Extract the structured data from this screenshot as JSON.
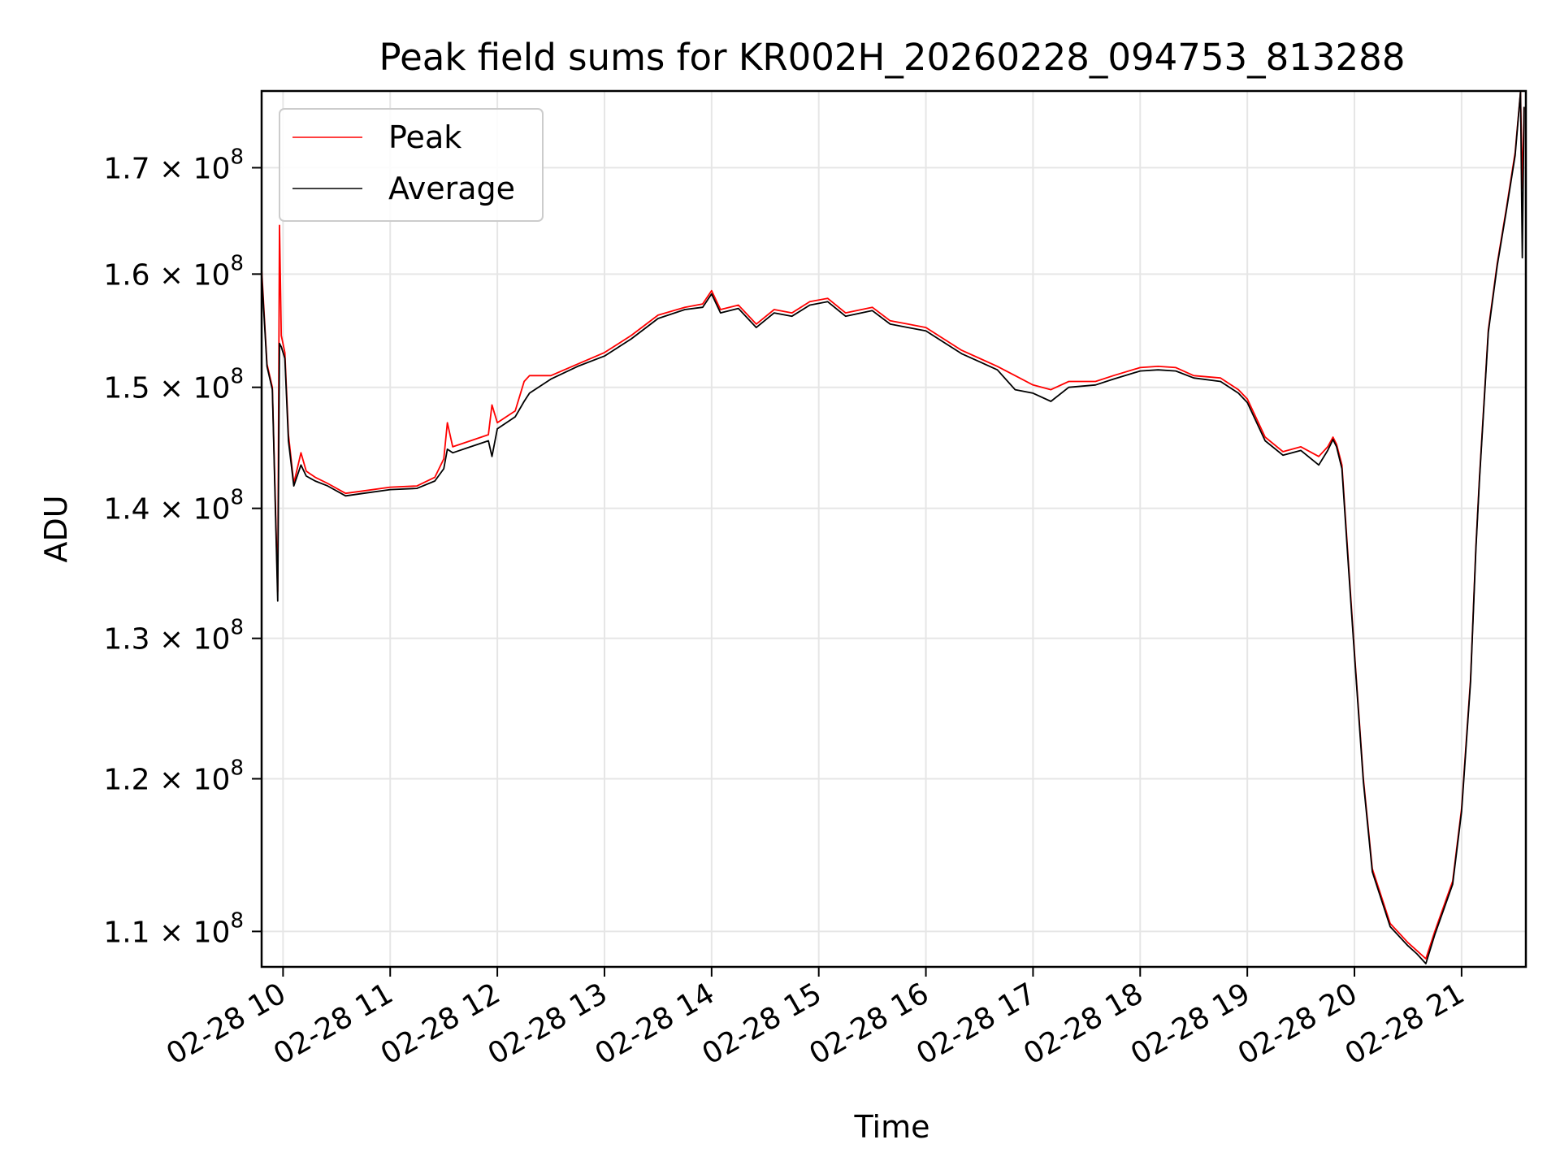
{
  "chart_data": {
    "type": "line",
    "title": "Peak field sums for KR002H_20260228_094753_813288",
    "xlabel": "Time",
    "ylabel": "ADU",
    "yscale": "log",
    "grid": true,
    "legend_position": "top-left",
    "xlim": [
      "02-28 09:48",
      "02-28 21:36"
    ],
    "ylim": [
      107800000,
      177600000
    ],
    "x_ticks": [
      "02-28 10",
      "02-28 11",
      "02-28 12",
      "02-28 13",
      "02-28 14",
      "02-28 15",
      "02-28 16",
      "02-28 17",
      "02-28 18",
      "02-28 19",
      "02-28 20",
      "02-28 21"
    ],
    "y_ticks": [
      {
        "value": 110000000,
        "mantissa": "1.1",
        "base": "10",
        "exponent": "8"
      },
      {
        "value": 120000000,
        "mantissa": "1.2",
        "base": "10",
        "exponent": "8"
      },
      {
        "value": 130000000,
        "mantissa": "1.3",
        "base": "10",
        "exponent": "8"
      },
      {
        "value": 140000000,
        "mantissa": "1.4",
        "base": "10",
        "exponent": "8"
      },
      {
        "value": 150000000,
        "mantissa": "1.5",
        "base": "10",
        "exponent": "8"
      },
      {
        "value": 160000000,
        "mantissa": "1.6",
        "base": "10",
        "exponent": "8"
      },
      {
        "value": 170000000,
        "mantissa": "1.7",
        "base": "10",
        "exponent": "8"
      }
    ],
    "series": [
      {
        "name": "Peak",
        "color": "#ff0000",
        "points": [
          [
            "02-28 09:48",
            160500000
          ],
          [
            "02-28 09:51",
            152000000
          ],
          [
            "02-28 09:54",
            150000000
          ],
          [
            "02-28 09:57",
            133500000
          ],
          [
            "02-28 09:58",
            164500000
          ],
          [
            "02-28 09:59",
            154500000
          ],
          [
            "02-28 10:01",
            153000000
          ],
          [
            "02-28 10:03",
            146000000
          ],
          [
            "02-28 10:06",
            142000000
          ],
          [
            "02-28 10:10",
            144500000
          ],
          [
            "02-28 10:13",
            143000000
          ],
          [
            "02-28 10:18",
            142500000
          ],
          [
            "02-28 10:25",
            142000000
          ],
          [
            "02-28 10:35",
            141200000
          ],
          [
            "02-28 10:45",
            141400000
          ],
          [
            "02-28 11:00",
            141700000
          ],
          [
            "02-28 11:15",
            141800000
          ],
          [
            "02-28 11:25",
            142500000
          ],
          [
            "02-28 11:30",
            144000000
          ],
          [
            "02-28 11:32",
            147000000
          ],
          [
            "02-28 11:35",
            145000000
          ],
          [
            "02-28 11:45",
            145500000
          ],
          [
            "02-28 11:55",
            146000000
          ],
          [
            "02-28 11:57",
            148500000
          ],
          [
            "02-28 12:00",
            147000000
          ],
          [
            "02-28 12:10",
            148000000
          ],
          [
            "02-28 12:15",
            150500000
          ],
          [
            "02-28 12:18",
            151000000
          ],
          [
            "02-28 12:30",
            151000000
          ],
          [
            "02-28 12:45",
            152000000
          ],
          [
            "02-28 13:00",
            153000000
          ],
          [
            "02-28 13:15",
            154500000
          ],
          [
            "02-28 13:30",
            156300000
          ],
          [
            "02-28 13:45",
            157000000
          ],
          [
            "02-28 13:55",
            157300000
          ],
          [
            "02-28 14:00",
            158500000
          ],
          [
            "02-28 14:05",
            156800000
          ],
          [
            "02-28 14:15",
            157200000
          ],
          [
            "02-28 14:25",
            155500000
          ],
          [
            "02-28 14:35",
            156800000
          ],
          [
            "02-28 14:45",
            156500000
          ],
          [
            "02-28 14:55",
            157500000
          ],
          [
            "02-28 15:05",
            157800000
          ],
          [
            "02-28 15:15",
            156500000
          ],
          [
            "02-28 15:30",
            157000000
          ],
          [
            "02-28 15:40",
            155800000
          ],
          [
            "02-28 15:50",
            155500000
          ],
          [
            "02-28 16:00",
            155200000
          ],
          [
            "02-28 16:10",
            154200000
          ],
          [
            "02-28 16:20",
            153200000
          ],
          [
            "02-28 16:30",
            152500000
          ],
          [
            "02-28 16:40",
            151800000
          ],
          [
            "02-28 16:50",
            151000000
          ],
          [
            "02-28 17:00",
            150200000
          ],
          [
            "02-28 17:10",
            149800000
          ],
          [
            "02-28 17:20",
            150500000
          ],
          [
            "02-28 17:35",
            150500000
          ],
          [
            "02-28 17:45",
            151000000
          ],
          [
            "02-28 18:00",
            151700000
          ],
          [
            "02-28 18:10",
            151800000
          ],
          [
            "02-28 18:20",
            151700000
          ],
          [
            "02-28 18:30",
            151000000
          ],
          [
            "02-28 18:45",
            150800000
          ],
          [
            "02-28 18:55",
            149800000
          ],
          [
            "02-28 19:00",
            149000000
          ],
          [
            "02-28 19:10",
            145800000
          ],
          [
            "02-28 19:20",
            144600000
          ],
          [
            "02-28 19:30",
            145000000
          ],
          [
            "02-28 19:40",
            144200000
          ],
          [
            "02-28 19:45",
            145000000
          ],
          [
            "02-28 19:48",
            145800000
          ],
          [
            "02-28 19:50",
            145200000
          ],
          [
            "02-28 19:53",
            143500000
          ],
          [
            "02-28 19:57",
            135000000
          ],
          [
            "02-28 20:00",
            129000000
          ],
          [
            "02-28 20:05",
            120000000
          ],
          [
            "02-28 20:10",
            114000000
          ],
          [
            "02-28 20:20",
            110500000
          ],
          [
            "02-28 20:30",
            109300000
          ],
          [
            "02-28 20:35",
            108800000
          ],
          [
            "02-28 20:40",
            108300000
          ],
          [
            "02-28 20:45",
            110000000
          ],
          [
            "02-28 20:55",
            113200000
          ],
          [
            "02-28 21:00",
            118000000
          ],
          [
            "02-28 21:05",
            127000000
          ],
          [
            "02-28 21:08",
            137000000
          ],
          [
            "02-28 21:10",
            142500000
          ],
          [
            "02-28 21:15",
            155000000
          ],
          [
            "02-28 21:20",
            161000000
          ],
          [
            "02-28 21:25",
            166000000
          ],
          [
            "02-28 21:30",
            171500000
          ],
          [
            "02-28 21:33",
            177500000
          ],
          [
            "02-28 21:34",
            168000000
          ],
          [
            "02-28 21:35",
            176000000
          ]
        ]
      },
      {
        "name": "Average",
        "color": "#000000",
        "points": [
          [
            "02-28 09:48",
            160000000
          ],
          [
            "02-28 09:51",
            151800000
          ],
          [
            "02-28 09:54",
            149800000
          ],
          [
            "02-28 09:57",
            132800000
          ],
          [
            "02-28 09:58",
            153800000
          ],
          [
            "02-28 09:59",
            153500000
          ],
          [
            "02-28 10:01",
            152500000
          ],
          [
            "02-28 10:03",
            145500000
          ],
          [
            "02-28 10:06",
            141800000
          ],
          [
            "02-28 10:10",
            143500000
          ],
          [
            "02-28 10:13",
            142600000
          ],
          [
            "02-28 10:18",
            142200000
          ],
          [
            "02-28 10:25",
            141800000
          ],
          [
            "02-28 10:35",
            141000000
          ],
          [
            "02-28 10:45",
            141200000
          ],
          [
            "02-28 11:00",
            141500000
          ],
          [
            "02-28 11:15",
            141600000
          ],
          [
            "02-28 11:25",
            142200000
          ],
          [
            "02-28 11:30",
            143200000
          ],
          [
            "02-28 11:32",
            144800000
          ],
          [
            "02-28 11:35",
            144500000
          ],
          [
            "02-28 11:45",
            145000000
          ],
          [
            "02-28 11:55",
            145500000
          ],
          [
            "02-28 11:57",
            144200000
          ],
          [
            "02-28 12:00",
            146500000
          ],
          [
            "02-28 12:10",
            147500000
          ],
          [
            "02-28 12:15",
            148800000
          ],
          [
            "02-28 12:18",
            149500000
          ],
          [
            "02-28 12:30",
            150700000
          ],
          [
            "02-28 12:45",
            151800000
          ],
          [
            "02-28 13:00",
            152700000
          ],
          [
            "02-28 13:15",
            154200000
          ],
          [
            "02-28 13:30",
            156000000
          ],
          [
            "02-28 13:45",
            156800000
          ],
          [
            "02-28 13:55",
            157000000
          ],
          [
            "02-28 14:00",
            158200000
          ],
          [
            "02-28 14:05",
            156500000
          ],
          [
            "02-28 14:15",
            156900000
          ],
          [
            "02-28 14:25",
            155200000
          ],
          [
            "02-28 14:35",
            156500000
          ],
          [
            "02-28 14:45",
            156200000
          ],
          [
            "02-28 14:55",
            157200000
          ],
          [
            "02-28 15:05",
            157500000
          ],
          [
            "02-28 15:15",
            156200000
          ],
          [
            "02-28 15:30",
            156700000
          ],
          [
            "02-28 15:40",
            155500000
          ],
          [
            "02-28 15:50",
            155200000
          ],
          [
            "02-28 16:00",
            154900000
          ],
          [
            "02-28 16:10",
            153900000
          ],
          [
            "02-28 16:20",
            152900000
          ],
          [
            "02-28 16:30",
            152200000
          ],
          [
            "02-28 16:40",
            151500000
          ],
          [
            "02-28 16:50",
            149800000
          ],
          [
            "02-28 17:00",
            149500000
          ],
          [
            "02-28 17:10",
            148800000
          ],
          [
            "02-28 17:20",
            150000000
          ],
          [
            "02-28 17:35",
            150200000
          ],
          [
            "02-28 17:45",
            150700000
          ],
          [
            "02-28 18:00",
            151400000
          ],
          [
            "02-28 18:10",
            151500000
          ],
          [
            "02-28 18:20",
            151400000
          ],
          [
            "02-28 18:30",
            150800000
          ],
          [
            "02-28 18:45",
            150500000
          ],
          [
            "02-28 18:55",
            149500000
          ],
          [
            "02-28 19:00",
            148700000
          ],
          [
            "02-28 19:10",
            145500000
          ],
          [
            "02-28 19:20",
            144300000
          ],
          [
            "02-28 19:30",
            144700000
          ],
          [
            "02-28 19:40",
            143500000
          ],
          [
            "02-28 19:45",
            144700000
          ],
          [
            "02-28 19:48",
            145600000
          ],
          [
            "02-28 19:50",
            145000000
          ],
          [
            "02-28 19:53",
            143200000
          ],
          [
            "02-28 19:57",
            134700000
          ],
          [
            "02-28 20:00",
            128800000
          ],
          [
            "02-28 20:05",
            119800000
          ],
          [
            "02-28 20:10",
            113800000
          ],
          [
            "02-28 20:20",
            110300000
          ],
          [
            "02-28 20:30",
            109100000
          ],
          [
            "02-28 20:35",
            108600000
          ],
          [
            "02-28 20:40",
            108000000
          ],
          [
            "02-28 20:45",
            109800000
          ],
          [
            "02-28 20:55",
            113000000
          ],
          [
            "02-28 21:00",
            117800000
          ],
          [
            "02-28 21:05",
            126800000
          ],
          [
            "02-28 21:08",
            136800000
          ],
          [
            "02-28 21:10",
            142300000
          ],
          [
            "02-28 21:15",
            154800000
          ],
          [
            "02-28 21:20",
            160800000
          ],
          [
            "02-28 21:25",
            165800000
          ],
          [
            "02-28 21:30",
            171200000
          ],
          [
            "02-28 21:33",
            177500000
          ],
          [
            "02-28 21:34",
            161500000
          ],
          [
            "02-28 21:35",
            176000000
          ]
        ]
      }
    ]
  }
}
